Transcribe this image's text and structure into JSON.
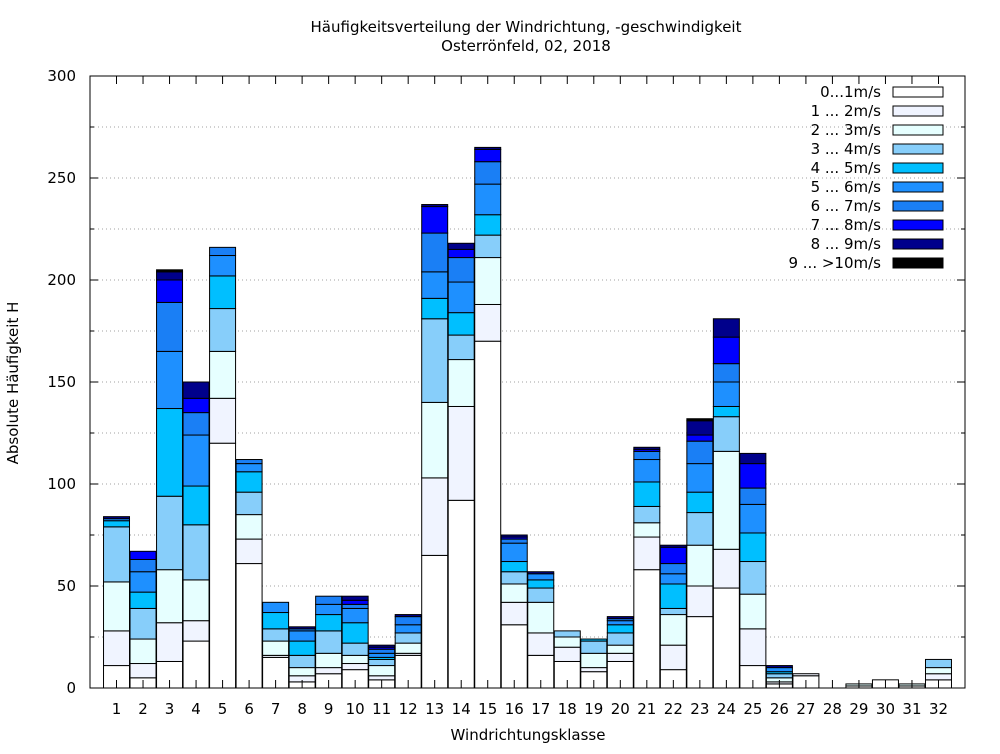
{
  "chart_data": {
    "type": "bar",
    "stacked": true,
    "title": "Häufigkeitsverteilung der Windrichtung, -geschwindigkeit",
    "subtitle": "Osterrönfeld, 02, 2018",
    "xlabel": "Windrichtungsklasse",
    "ylabel": "Absolute Häufigkeit H",
    "ylim": [
      0,
      300
    ],
    "yticks": [
      0,
      50,
      100,
      150,
      200,
      250,
      300
    ],
    "grid": true,
    "legend_position": "top-right",
    "categories": [
      "1",
      "2",
      "3",
      "4",
      "5",
      "6",
      "7",
      "8",
      "9",
      "10",
      "11",
      "12",
      "13",
      "14",
      "15",
      "16",
      "17",
      "18",
      "19",
      "20",
      "21",
      "22",
      "23",
      "24",
      "25",
      "26",
      "27",
      "28",
      "29",
      "30",
      "31",
      "32"
    ],
    "series": [
      {
        "name": "0...1m/s",
        "color": "#ffffff",
        "values": [
          11,
          5,
          13,
          23,
          120,
          61,
          15,
          3,
          7,
          9,
          4,
          16,
          65,
          92,
          170,
          31,
          16,
          13,
          8,
          13,
          58,
          9,
          35,
          49,
          11,
          2,
          6,
          0,
          1,
          4,
          1,
          4
        ]
      },
      {
        "name": "1 ... 2m/s",
        "color": "#f0f4ff",
        "values": [
          17,
          7,
          19,
          10,
          22,
          12,
          1,
          3,
          3,
          3,
          2,
          1,
          38,
          46,
          18,
          11,
          11,
          7,
          2,
          4,
          16,
          12,
          15,
          19,
          18,
          1,
          1,
          0,
          0,
          0,
          0,
          3
        ]
      },
      {
        "name": "2 ... 3m/s",
        "color": "#e6ffff",
        "values": [
          24,
          12,
          26,
          20,
          23,
          12,
          7,
          4,
          7,
          4,
          5,
          5,
          37,
          23,
          23,
          9,
          15,
          5,
          7,
          4,
          7,
          15,
          20,
          48,
          17,
          2,
          0,
          0,
          1,
          0,
          1,
          3
        ]
      },
      {
        "name": "3 ... 4m/s",
        "color": "#87cefa",
        "values": [
          27,
          15,
          36,
          27,
          21,
          11,
          6,
          6,
          11,
          6,
          3,
          5,
          41,
          12,
          11,
          6,
          7,
          3,
          6,
          6,
          8,
          3,
          16,
          17,
          16,
          2,
          0,
          0,
          0,
          0,
          0,
          4
        ]
      },
      {
        "name": "4 ... 5m/s",
        "color": "#00bfff",
        "values": [
          3,
          8,
          43,
          19,
          16,
          10,
          8,
          7,
          8,
          10,
          1,
          0,
          10,
          11,
          10,
          5,
          4,
          0,
          1,
          4,
          12,
          12,
          10,
          5,
          14,
          1,
          0,
          0,
          0,
          0,
          0,
          0
        ]
      },
      {
        "name": "5 ... 6m/s",
        "color": "#1e90ff",
        "values": [
          1,
          10,
          28,
          25,
          10,
          4,
          5,
          5,
          5,
          7,
          2,
          4,
          13,
          15,
          15,
          9,
          3,
          0,
          0,
          2,
          11,
          5,
          14,
          12,
          14,
          2,
          0,
          0,
          0,
          0,
          0,
          0
        ]
      },
      {
        "name": "6 ... 7m/s",
        "color": "#1a7ff5",
        "values": [
          0,
          6,
          24,
          11,
          4,
          2,
          0,
          1,
          4,
          2,
          2,
          4,
          19,
          12,
          11,
          2,
          0,
          0,
          0,
          1,
          4,
          5,
          11,
          9,
          8,
          0,
          0,
          0,
          0,
          0,
          0,
          0
        ]
      },
      {
        "name": "7 ... 8m/s",
        "color": "#0000ff",
        "values": [
          0,
          4,
          11,
          7,
          0,
          0,
          0,
          0,
          0,
          2,
          1,
          0,
          13,
          4,
          6,
          1,
          0,
          0,
          0,
          0,
          1,
          8,
          3,
          13,
          12,
          0,
          0,
          0,
          0,
          0,
          0,
          0
        ]
      },
      {
        "name": "8 ... 9m/s",
        "color": "#00008b",
        "values": [
          1,
          0,
          4,
          8,
          0,
          0,
          0,
          1,
          0,
          2,
          1,
          1,
          1,
          3,
          1,
          1,
          1,
          0,
          0,
          1,
          1,
          1,
          7,
          9,
          5,
          1,
          0,
          0,
          0,
          0,
          0,
          0
        ]
      },
      {
        "name": "9 ... >10m/s",
        "color": "#000000",
        "values": [
          0,
          0,
          1,
          0,
          0,
          0,
          0,
          0,
          0,
          0,
          0,
          0,
          0,
          0,
          0,
          0,
          0,
          0,
          0,
          0,
          0,
          0,
          1,
          0,
          0,
          0,
          0,
          0,
          0,
          0,
          0,
          0
        ]
      }
    ]
  }
}
